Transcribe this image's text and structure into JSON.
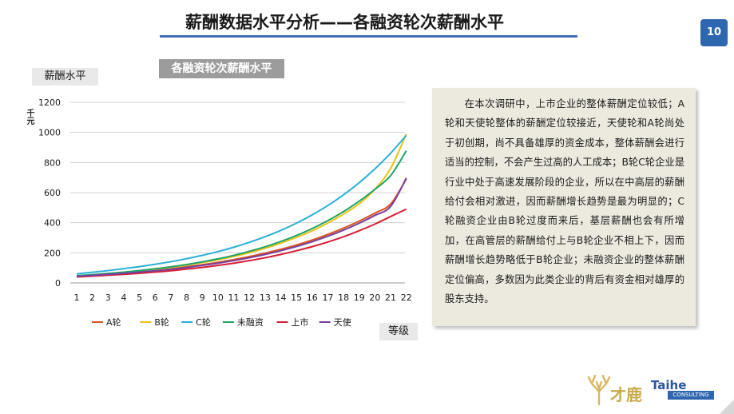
{
  "header": {
    "title": "薪酬数据水平分析——各融资轮次薪酬水平",
    "page_number": "10"
  },
  "chart_badge": "各融资轮次薪酬水平",
  "axis_box": {
    "y_title": "薪酬水平",
    "y_unit": "千元",
    "x_title": "等级"
  },
  "note": "在本次调研中，上市企业的整体薪酬定位较低；A轮和天使轮整体的薪酬定位较接近，天使轮和A轮尚处于初创期，尚不具备雄厚的资金成本，整体薪酬会进行适当的控制，不会产生过高的人工成本；B轮C轮企业是行业中处于高速发展阶段的企业，所以在中高层的薪酬给付会相对激进，因而薪酬增长趋势是最为明显的；C轮融资企业由B轮过度而来后，基层薪酬也会有所增加，在高管层的薪酬给付上与B轮企业不相上下，因而薪酬增长趋势略低于B轮企业；未融资企业的整体薪酬定位偏高，多数因为此类企业的背后有资金相对雄厚的股东支持。",
  "logo": {
    "cn": "才鹿",
    "en": "Taihe",
    "sub": "CONSULTING"
  },
  "chart_data": {
    "type": "line",
    "title": "各融资轮次薪酬水平",
    "xlabel": "等级",
    "ylabel": "薪酬水平",
    "y_unit": "千元",
    "categories": [
      "1",
      "2",
      "3",
      "4",
      "5",
      "6",
      "7",
      "8",
      "9",
      "10",
      "11",
      "12",
      "13",
      "14",
      "15",
      "16",
      "17",
      "18",
      "19",
      "20",
      "21",
      "22"
    ],
    "ylim": [
      0,
      1200
    ],
    "yticks": [
      0,
      200,
      400,
      600,
      800,
      1000,
      1200
    ],
    "grid": true,
    "legend_position": "bottom",
    "series": [
      {
        "name": "A轮",
        "color": "#d9531e",
        "values": [
          42,
          49,
          57,
          65,
          74,
          84,
          95,
          107,
          121,
          137,
          155,
          175,
          198,
          223,
          252,
          285,
          322,
          364,
          411,
          464,
          524,
          690
        ]
      },
      {
        "name": "B轮",
        "color": "#e8c21a",
        "values": [
          45,
          52,
          60,
          69,
          79,
          90,
          103,
          118,
          135,
          154,
          176,
          201,
          230,
          264,
          302,
          346,
          398,
          457,
          526,
          622,
          760,
          990
        ]
      },
      {
        "name": "C轮",
        "color": "#2ab0d6",
        "values": [
          60,
          71,
          82,
          95,
          108,
          124,
          141,
          161,
          183,
          208,
          237,
          270,
          307,
          349,
          397,
          452,
          514,
          585,
          666,
          758,
          862,
          980
        ]
      },
      {
        "name": "未融资",
        "color": "#1fa365",
        "values": [
          48,
          55,
          63,
          72,
          82,
          94,
          107,
          122,
          140,
          160,
          183,
          210,
          240,
          275,
          315,
          361,
          414,
          474,
          543,
          622,
          713,
          878
        ]
      },
      {
        "name": "上市",
        "color": "#d41f36",
        "values": [
          40,
          45,
          51,
          57,
          64,
          72,
          81,
          92,
          103,
          116,
          131,
          148,
          167,
          189,
          214,
          241,
          272,
          307,
          347,
          391,
          441,
          490
        ]
      },
      {
        "name": "天使",
        "color": "#7a3fa0",
        "values": [
          44,
          50,
          57,
          64,
          72,
          81,
          91,
          103,
          116,
          131,
          148,
          167,
          189,
          214,
          242,
          274,
          310,
          351,
          397,
          449,
          508,
          697
        ]
      }
    ]
  }
}
